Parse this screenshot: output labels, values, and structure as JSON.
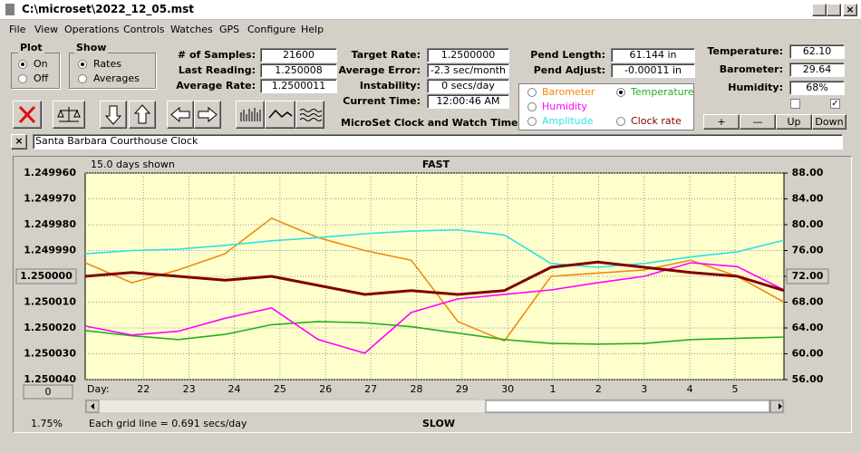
{
  "window": {
    "title": "C:\\microset\\2022_12_05.mst"
  },
  "menu": [
    "File",
    "View",
    "Operations",
    "Controls",
    "Watches",
    "GPS",
    "Configure",
    "Help"
  ],
  "plot_group": {
    "label": "Plot",
    "options": [
      "On",
      "Off"
    ],
    "selected": 0
  },
  "show_group": {
    "label": "Show",
    "options": [
      "Rates",
      "Averages"
    ],
    "selected": 0
  },
  "fields_a": [
    {
      "label": "# of Samples:",
      "value": "21600"
    },
    {
      "label": "Last Reading:",
      "value": "1.250008"
    },
    {
      "label": "Average Rate:",
      "value": "1.2500011"
    }
  ],
  "fields_b": [
    {
      "label": "Target Rate:",
      "value": "1.2500000"
    },
    {
      "label": "Average Error:",
      "value": "-2.3 sec/month"
    },
    {
      "label": "Instability:",
      "value": "0 secs/day"
    },
    {
      "label": "Current Time:",
      "value": "12:00:46 AM"
    }
  ],
  "fields_c": [
    {
      "label": "Pend Length:",
      "value": "61.144 in"
    },
    {
      "label": "Pend Adjust:",
      "value": "-0.00011 in"
    }
  ],
  "fields_d": [
    {
      "label": "Temperature:",
      "value": "62.10"
    },
    {
      "label": "Barometer:",
      "value": "29.64"
    },
    {
      "label": "Humidity:",
      "value": "68%"
    }
  ],
  "app_name": "MicroSet Clock and Watch Timer",
  "scale_buttons": [
    "+",
    "—",
    "Up",
    "Down"
  ],
  "clock_name": "Santa Barbara Courthouse Clock",
  "chart": {
    "days_shown": "15.0 days shown",
    "top_label": "FAST",
    "bottom_label": "SLOW",
    "day_label": "Day:",
    "grid_note": "Each grid line = 0.691 secs/day",
    "percent": "1.75%",
    "offset_button": "0",
    "xlim": [
      0,
      15
    ],
    "xticks": [
      {
        "value": 1.25,
        "label": "22"
      },
      {
        "value": 2.23,
        "label": "23"
      },
      {
        "value": 3.2,
        "label": "24"
      },
      {
        "value": 4.18,
        "label": "25"
      },
      {
        "value": 5.16,
        "label": "26"
      },
      {
        "value": 6.13,
        "label": "27"
      },
      {
        "value": 7.11,
        "label": "28"
      },
      {
        "value": 8.09,
        "label": "29"
      },
      {
        "value": 9.07,
        "label": "30"
      },
      {
        "value": 10.04,
        "label": "1"
      },
      {
        "value": 11.02,
        "label": "2"
      },
      {
        "value": 12,
        "label": "3"
      },
      {
        "value": 12.98,
        "label": "4"
      },
      {
        "value": 13.95,
        "label": "5"
      }
    ],
    "ylim": [
      1.25004,
      1.24996
    ],
    "yticks": [
      {
        "value": 1.24996,
        "label": "1.249960"
      },
      {
        "value": 1.24997,
        "label": "1.249970"
      },
      {
        "value": 1.24998,
        "label": "1.249980"
      },
      {
        "value": 1.24999,
        "label": "1.249990"
      },
      {
        "value": 1.25,
        "label": "1.250000"
      },
      {
        "value": 1.25001,
        "label": "1.250010"
      },
      {
        "value": 1.25002,
        "label": "1.250020"
      },
      {
        "value": 1.25003,
        "label": "1.250030"
      },
      {
        "value": 1.25004,
        "label": "1.250040"
      }
    ],
    "y_button_tick": 4,
    "y2lim": [
      56,
      88
    ],
    "y2ticks": [
      {
        "value": 88,
        "label": "88.00"
      },
      {
        "value": 84,
        "label": "84.00"
      },
      {
        "value": 80,
        "label": "80.00"
      },
      {
        "value": 76,
        "label": "76.00"
      },
      {
        "value": 72,
        "label": "72.00"
      },
      {
        "value": 68,
        "label": "68.00"
      },
      {
        "value": 64,
        "label": "64.00"
      },
      {
        "value": 60,
        "label": "60.00"
      },
      {
        "value": 56,
        "label": "56.00"
      }
    ],
    "y2_button_tick": 4,
    "grid": true,
    "selected_series": 1,
    "x": [
      0,
      1,
      2,
      3,
      4,
      5,
      6,
      7,
      8,
      9,
      10,
      11,
      12,
      13,
      14,
      15
    ],
    "series": [
      {
        "name": "Barometer",
        "color": "#f08a10",
        "axis": "y2",
        "values": [
          74.1,
          71,
          73,
          75.5,
          81,
          78,
          76,
          74.5,
          65,
          62,
          72,
          72.5,
          73,
          74.5,
          72,
          68
        ]
      },
      {
        "name": "Temperature",
        "color": "#20b020",
        "axis": "y2",
        "values": [
          63.6,
          62.8,
          62.2,
          63,
          64.5,
          65,
          64.8,
          64.2,
          63.2,
          62.2,
          61.6,
          61.5,
          61.6,
          62.2,
          62.4,
          62.6
        ]
      },
      {
        "name": "Humidity",
        "color": "#ff00ff",
        "axis": "y2",
        "values": [
          64.3,
          62.9,
          63.5,
          65.5,
          67.1,
          62.2,
          60.1,
          66.4,
          68.5,
          69.2,
          69.9,
          71,
          72,
          74.1,
          73.5,
          69.9
        ]
      },
      {
        "name": "Amplitude",
        "color": "#30e0e8",
        "axis": "y2",
        "values": [
          75.5,
          76,
          76.2,
          76.8,
          77.5,
          78,
          78.6,
          79,
          79.2,
          78.4,
          74,
          73.4,
          74,
          75,
          75.8,
          77.6
        ]
      },
      {
        "name": "Clock rate",
        "color": "#800000",
        "axis": "y",
        "values": [
          1.25,
          1.2499985,
          1.25,
          1.2500015,
          1.25,
          1.2500035,
          1.250007,
          1.2500055,
          1.250007,
          1.2500055,
          1.2499965,
          1.2499945,
          1.2499965,
          1.2499985,
          1.25,
          1.2500055
        ]
      }
    ]
  }
}
